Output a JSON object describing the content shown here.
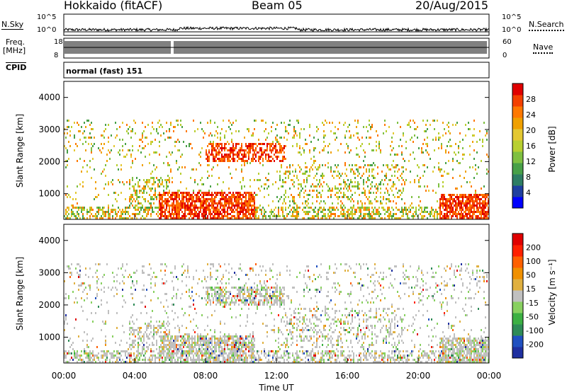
{
  "header": {
    "station": "Hokkaido (fitACF)",
    "beam": "Beam 05",
    "date": "20/Aug/2015"
  },
  "top_panels": {
    "nsky": {
      "label": "N.Sky",
      "ticks": [
        "10^5",
        "10^0"
      ],
      "right_ticks": [
        "10^5",
        "10^0"
      ],
      "right_label": "N.Search"
    },
    "freq": {
      "label_line1": "Freq.",
      "label_line2": "[MHz]",
      "ticks": [
        "18",
        "8"
      ],
      "right_ticks": [
        "60",
        "0"
      ],
      "right_label": "Nave"
    },
    "cpid": {
      "label": "CPID",
      "mode": "normal (fast) 151"
    }
  },
  "chart_data": [
    {
      "type": "heatmap",
      "panel": "power",
      "ylabel": "Slant Range [km]",
      "yticks": [
        "4000",
        "3000",
        "2000",
        "1000"
      ],
      "ylim": [
        200,
        4500
      ],
      "colorbar_label": "Power [dB]",
      "colorbar_ticks": [
        "28",
        "24",
        "20",
        "16",
        "12",
        "8",
        "4"
      ],
      "colorscale": [
        "#0000ff",
        "#1f3fa0",
        "#2e7d64",
        "#48a048",
        "#7fc041",
        "#b8cf30",
        "#e4c832",
        "#f0a000",
        "#ff7800",
        "#f44000",
        "#e00000"
      ]
    },
    {
      "type": "heatmap",
      "panel": "velocity",
      "ylabel": "Slant Range [km]",
      "yticks": [
        "4000",
        "3000",
        "2000",
        "1000"
      ],
      "ylim": [
        200,
        4500
      ],
      "colorbar_label": "Velocity [m s⁻¹]",
      "colorbar_ticks": [
        "200",
        "100",
        "50",
        "15",
        "-15",
        "-50",
        "-100",
        "-200"
      ],
      "colorscale": [
        "#1f2fa0",
        "#2050c0",
        "#2e8b57",
        "#3cb043",
        "#88d060",
        "#c0c0c0",
        "#e0b040",
        "#f09000",
        "#ff6000",
        "#ff2000",
        "#e00000"
      ]
    }
  ],
  "x_axis": {
    "ticks": [
      "00:00",
      "04:00",
      "08:00",
      "12:00",
      "16:00",
      "20:00",
      "00:00"
    ],
    "label": "Time UT"
  }
}
